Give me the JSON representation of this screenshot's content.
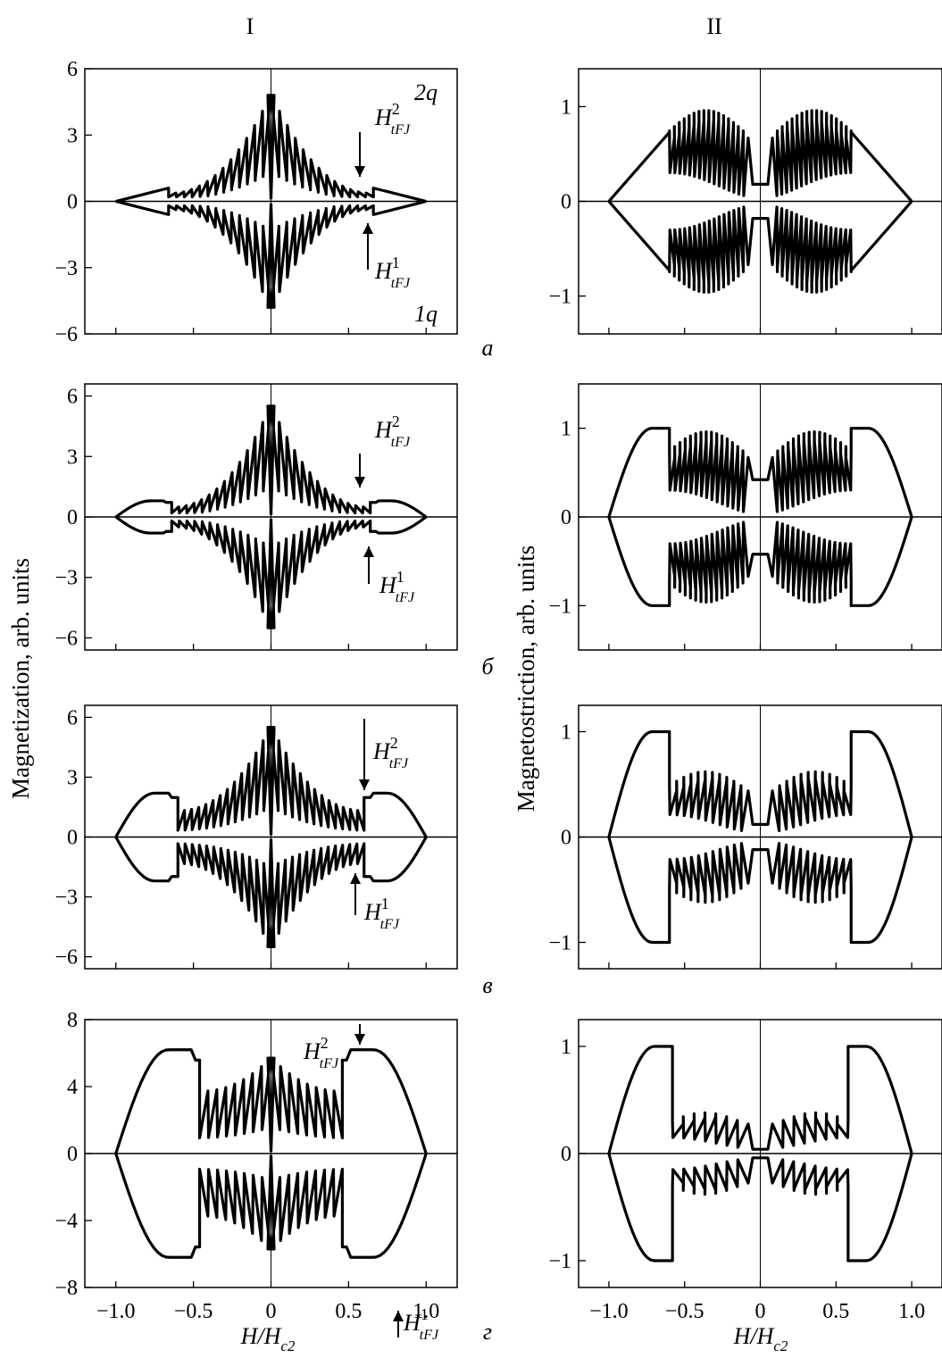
{
  "figure": {
    "column_headers": [
      "I",
      "II"
    ],
    "ylabel_left": "Magnetization, arb. units",
    "ylabel_right": "Magnetostriction, arb. units",
    "xlabel_main": "H/H",
    "xlabel_sub": "c2",
    "panel_letters": [
      "а",
      "б",
      "в",
      "г"
    ],
    "curve_labels": {
      "top": "2q",
      "bottom": "1q"
    },
    "field_main": "H",
    "field_sup_2": "2",
    "field_sup_1": "1",
    "field_sub": "tFJ",
    "line_color": "#000000"
  },
  "chart_data": [
    {
      "panel": "а",
      "column": "I",
      "type": "line",
      "xlim": [
        -1.2,
        1.2
      ],
      "ylim": [
        -6,
        6
      ],
      "yticks": [
        6,
        3,
        0,
        -3,
        -6
      ],
      "ytick_labels": [
        "6",
        "3",
        "0",
        "-3",
        "-6"
      ],
      "xticks": [
        -1,
        -0.5,
        0,
        0.5,
        1
      ],
      "xtick_labels": [],
      "peak": 4.8,
      "outer": 0.6,
      "span": 0.98,
      "osc_start": 0.66,
      "osc_end": 0.6,
      "n_teeth": 13,
      "shape": "diamond"
    },
    {
      "panel": "а",
      "column": "II",
      "type": "line",
      "xlim": [
        -1.2,
        1.2
      ],
      "ylim": [
        -1.4,
        1.4
      ],
      "yticks": [
        1,
        0,
        -1
      ],
      "ytick_labels": [
        "1",
        "0",
        "-1"
      ],
      "xticks": [
        -1,
        -0.5,
        0,
        0.5,
        1
      ],
      "xtick_labels": [],
      "envelope_peak": 0.73,
      "osc_amp": 0.96,
      "center": 0.18,
      "osc_start": 0.6,
      "osc_end": 0.06,
      "n_teeth": 16,
      "shape": "diamond"
    },
    {
      "panel": "б",
      "column": "I",
      "type": "line",
      "xlim": [
        -1.2,
        1.2
      ],
      "ylim": [
        -6.6,
        6.6
      ],
      "yticks": [
        6,
        3,
        0,
        -3,
        -6
      ],
      "ytick_labels": [
        "6",
        "3",
        "0",
        "-3",
        "-6"
      ],
      "xticks": [
        -1,
        -0.5,
        0,
        0.5,
        1
      ],
      "xtick_labels": [],
      "peak": 5.5,
      "outer": 0.8,
      "span": 0.98,
      "osc_start": 0.64,
      "osc_end": 0.6,
      "n_teeth": 13,
      "shape": "hump"
    },
    {
      "panel": "б",
      "column": "II",
      "type": "line",
      "xlim": [
        -1.2,
        1.2
      ],
      "ylim": [
        -1.5,
        1.5
      ],
      "yticks": [
        1,
        0,
        -1
      ],
      "ytick_labels": [
        "1",
        "0",
        "-1"
      ],
      "xticks": [
        -1,
        -0.5,
        0,
        0.5,
        1
      ],
      "xtick_labels": [],
      "envelope_peak": 1.0,
      "osc_amp": 0.96,
      "center": 0.42,
      "osc_start": 0.6,
      "osc_end": 0.06,
      "n_teeth": 15,
      "shape": "hump"
    },
    {
      "panel": "в",
      "column": "I",
      "type": "line",
      "xlim": [
        -1.2,
        1.2
      ],
      "ylim": [
        -6.6,
        6.6
      ],
      "yticks": [
        6,
        3,
        0,
        -3,
        -6
      ],
      "ytick_labels": [
        "6",
        "3",
        "0",
        "-3",
        "-6"
      ],
      "xticks": [
        -1,
        -0.5,
        0,
        0.5,
        1
      ],
      "xtick_labels": [],
      "peak": 5.5,
      "outer": 2.2,
      "span": 0.98,
      "osc_start": 0.6,
      "osc_end": 0.6,
      "n_teeth": 13,
      "shape": "hump"
    },
    {
      "panel": "в",
      "column": "II",
      "type": "line",
      "xlim": [
        -1.2,
        1.2
      ],
      "ylim": [
        -1.25,
        1.25
      ],
      "yticks": [
        1,
        0,
        -1
      ],
      "ytick_labels": [
        "1",
        "0",
        "-1"
      ],
      "xticks": [
        -1,
        -0.5,
        0,
        0.5,
        1
      ],
      "xtick_labels": [],
      "envelope_peak": 1.0,
      "osc_amp": 0.62,
      "center": 0.12,
      "osc_start": 0.6,
      "osc_end": 0.06,
      "n_teeth": 11,
      "shape": "hump"
    },
    {
      "panel": "г",
      "column": "I",
      "type": "line",
      "xlim": [
        -1.2,
        1.2
      ],
      "ylim": [
        -8,
        8
      ],
      "yticks": [
        8,
        4,
        0,
        -4,
        -8
      ],
      "ytick_labels": [
        "8",
        "4",
        "0",
        "-4",
        "-8"
      ],
      "xticks": [
        -1,
        -0.5,
        0,
        0.5,
        1
      ],
      "xtick_labels": [
        "-1.0",
        "-0.5",
        "0",
        "0.5",
        "1.0"
      ],
      "peak": 5.7,
      "outer": 6.2,
      "span": 0.98,
      "osc_start": 0.46,
      "osc_end": 0.8,
      "n_teeth": 8,
      "shape": "hump"
    },
    {
      "panel": "г",
      "column": "II",
      "type": "line",
      "xlim": [
        -1.2,
        1.2
      ],
      "ylim": [
        -1.25,
        1.25
      ],
      "yticks": [
        1,
        0,
        -1
      ],
      "ytick_labels": [
        "1",
        "0",
        "-1"
      ],
      "xticks": [
        -1,
        -0.5,
        0,
        0.5,
        1
      ],
      "xtick_labels": [
        "-1.0",
        "-0.5",
        "0",
        "0.5",
        "1.0"
      ],
      "envelope_peak": 1.0,
      "osc_amp": 0.38,
      "center": 0.04,
      "osc_start": 0.58,
      "osc_end": 0.05,
      "n_teeth": 7,
      "shape": "hump"
    }
  ]
}
